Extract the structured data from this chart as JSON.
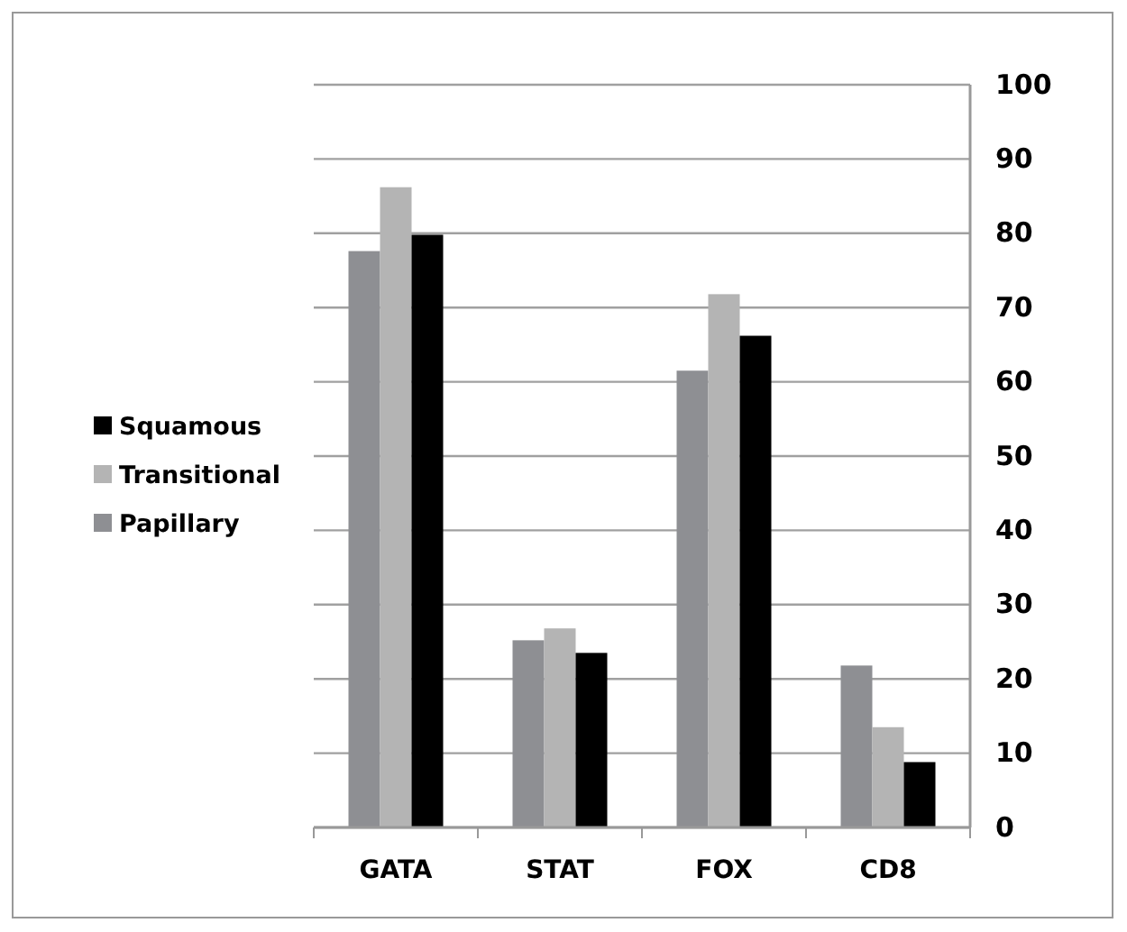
{
  "chart_data": {
    "type": "bar",
    "categories": [
      "GATA",
      "STAT",
      "FOX",
      "CD8"
    ],
    "series": [
      {
        "name": "Papillary",
        "color": "#8e8f93",
        "values": [
          77.6,
          25.2,
          61.5,
          21.8
        ]
      },
      {
        "name": "Transitional",
        "color": "#b4b4b4",
        "values": [
          86.2,
          26.8,
          71.8,
          13.5
        ]
      },
      {
        "name": "Squamous",
        "color": "#000000",
        "values": [
          79.8,
          23.5,
          66.2,
          8.8
        ]
      }
    ],
    "ylim": [
      0,
      100
    ],
    "yticks": [
      0,
      10,
      20,
      30,
      40,
      50,
      60,
      70,
      80,
      90,
      100
    ],
    "grid": "y",
    "legend": "left"
  }
}
